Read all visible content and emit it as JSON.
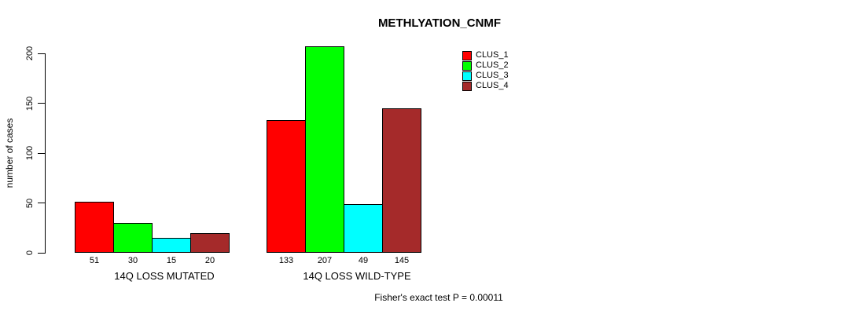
{
  "chart_data": {
    "type": "bar",
    "title": "METHLYATION_CNMF",
    "ylabel": "number of cases",
    "xlabel": "",
    "ylim": [
      0,
      200
    ],
    "yticks": [
      0,
      50,
      100,
      150,
      200
    ],
    "grid": false,
    "legend_position": "top-right",
    "background": "#FFFFFF",
    "bar_border_color": "#000000",
    "categories": [
      "14Q LOSS MUTATED",
      "14Q LOSS WILD-TYPE"
    ],
    "series": [
      {
        "name": "CLUS_1",
        "color": "#FF0000",
        "values": [
          51,
          133
        ]
      },
      {
        "name": "CLUS_2",
        "color": "#00FF00",
        "values": [
          30,
          207
        ]
      },
      {
        "name": "CLUS_3",
        "color": "#00FFFF",
        "values": [
          15,
          49
        ]
      },
      {
        "name": "CLUS_4",
        "color": "#A52A2A",
        "values": [
          20,
          145
        ]
      }
    ],
    "annotation": "Fisher's exact test P = 0.00011"
  }
}
